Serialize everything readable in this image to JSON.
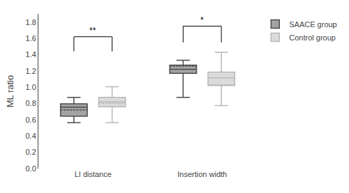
{
  "chart_data": {
    "type": "box",
    "ylabel": "ML ratio",
    "categories": [
      "LI distance",
      "Insertion width"
    ],
    "series": [
      {
        "name": "SAACE group",
        "color": "#4a4a4a",
        "values": [
          {
            "min": 0.565,
            "q1": 0.645,
            "median": 0.755,
            "q3": 0.795,
            "max": 0.875,
            "mean": 0.72
          },
          {
            "min": 0.875,
            "q1": 1.17,
            "median": 1.22,
            "q3": 1.27,
            "max": 1.33,
            "mean": 1.26
          }
        ]
      },
      {
        "name": "Control group",
        "color": "#b8b8b8",
        "values": [
          {
            "min": 0.565,
            "q1": 0.76,
            "median": 0.82,
            "q3": 0.875,
            "max": 1.005,
            "mean": 0.8
          },
          {
            "min": 0.775,
            "q1": 1.02,
            "median": 1.115,
            "q3": 1.185,
            "max": 1.43,
            "mean": 1.03
          }
        ]
      }
    ],
    "annotations": [
      {
        "category": "LI distance",
        "text": "**",
        "bracket": [
          1.44,
          1.62
        ]
      },
      {
        "category": "Insertion width",
        "text": "*",
        "bracket": [
          1.55,
          1.75
        ]
      }
    ],
    "ylim": [
      0,
      1.9
    ],
    "yticks": [
      {
        "value": 0,
        "label": "0.0"
      },
      0.2,
      0.4,
      0.6,
      0.8,
      {
        "value": 1.0,
        "label": "1.0"
      },
      1.2,
      1.4,
      1.6,
      1.8
    ],
    "grid": false,
    "legend": "upper right"
  }
}
